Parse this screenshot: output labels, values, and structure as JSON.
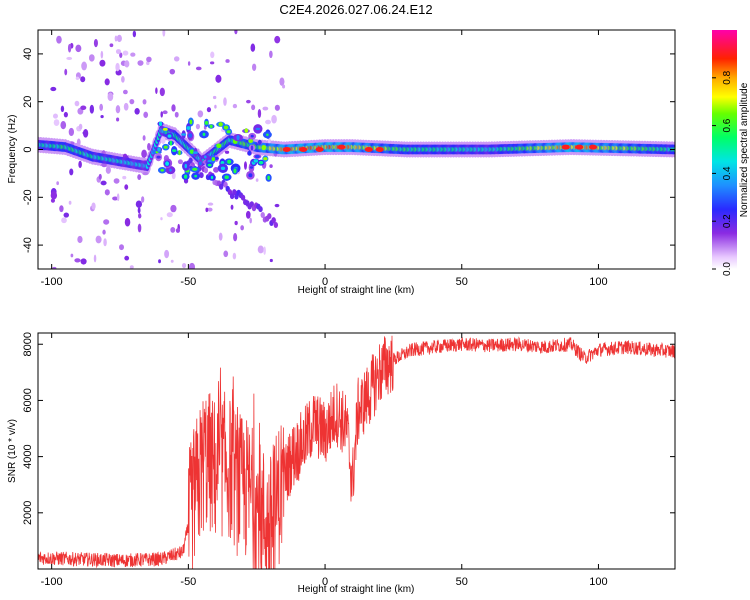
{
  "figure": {
    "title": "C2E4.2026.027.06.24.E12"
  },
  "chart_data": [
    {
      "type": "heatmap",
      "title": "",
      "xlabel": "Height of straight line (km)",
      "ylabel": "Frequency (Hz)",
      "xlim": [
        -105,
        128
      ],
      "ylim": [
        -50,
        50
      ],
      "xticks": [
        -100,
        -50,
        0,
        50,
        100
      ],
      "yticks": [
        -40,
        -20,
        0,
        20,
        40
      ],
      "colorbar": {
        "label": "Normalized spectral amplitude",
        "range": [
          0,
          1
        ],
        "ticks": [
          0.0,
          0.2,
          0.4,
          0.6,
          0.8
        ]
      },
      "ridge": {
        "description_points_x": [
          -105,
          -95,
          -85,
          -75,
          -65,
          -60,
          -55,
          -45,
          -35,
          -25,
          -15,
          0,
          10,
          30,
          60,
          90,
          128
        ],
        "center_freq_y": [
          2,
          1,
          -3,
          -5,
          -7,
          8,
          6,
          -5,
          4,
          1,
          0,
          1,
          1,
          0,
          0,
          1,
          0
        ],
        "amplitude": [
          0.5,
          0.6,
          0.55,
          0.5,
          0.45,
          0.5,
          0.55,
          0.5,
          0.6,
          0.7,
          0.85,
          0.9,
          0.85,
          0.6,
          0.5,
          0.9,
          0.55
        ]
      }
    },
    {
      "type": "line",
      "title": "",
      "xlabel": "Height of straight line (km)",
      "ylabel": "SNR (10 * v/v)",
      "xlim": [
        -105,
        128
      ],
      "ylim": [
        0,
        8400
      ],
      "xticks": [
        -100,
        -50,
        0,
        50,
        100
      ],
      "yticks": [
        2000,
        4000,
        6000,
        8000
      ],
      "series": [
        {
          "name": "SNR",
          "color": "#ee3333",
          "x": [
            -105,
            -90,
            -75,
            -60,
            -52,
            -48,
            -44,
            -40,
            -36,
            -32,
            -28,
            -24,
            -20,
            -16,
            -12,
            -8,
            -4,
            0,
            4,
            8,
            10,
            12,
            16,
            20,
            24,
            28,
            32,
            40,
            50,
            60,
            70,
            80,
            90,
            95,
            100,
            110,
            120,
            128
          ],
          "y": [
            400,
            350,
            300,
            350,
            600,
            2500,
            4000,
            3500,
            3800,
            3000,
            2800,
            2000,
            1500,
            3000,
            4000,
            4500,
            5200,
            4800,
            5600,
            5000,
            3000,
            5600,
            6200,
            7000,
            7400,
            7600,
            7800,
            7900,
            8000,
            7950,
            8000,
            7900,
            8000,
            7500,
            7800,
            7900,
            7800,
            7750
          ]
        }
      ]
    }
  ]
}
